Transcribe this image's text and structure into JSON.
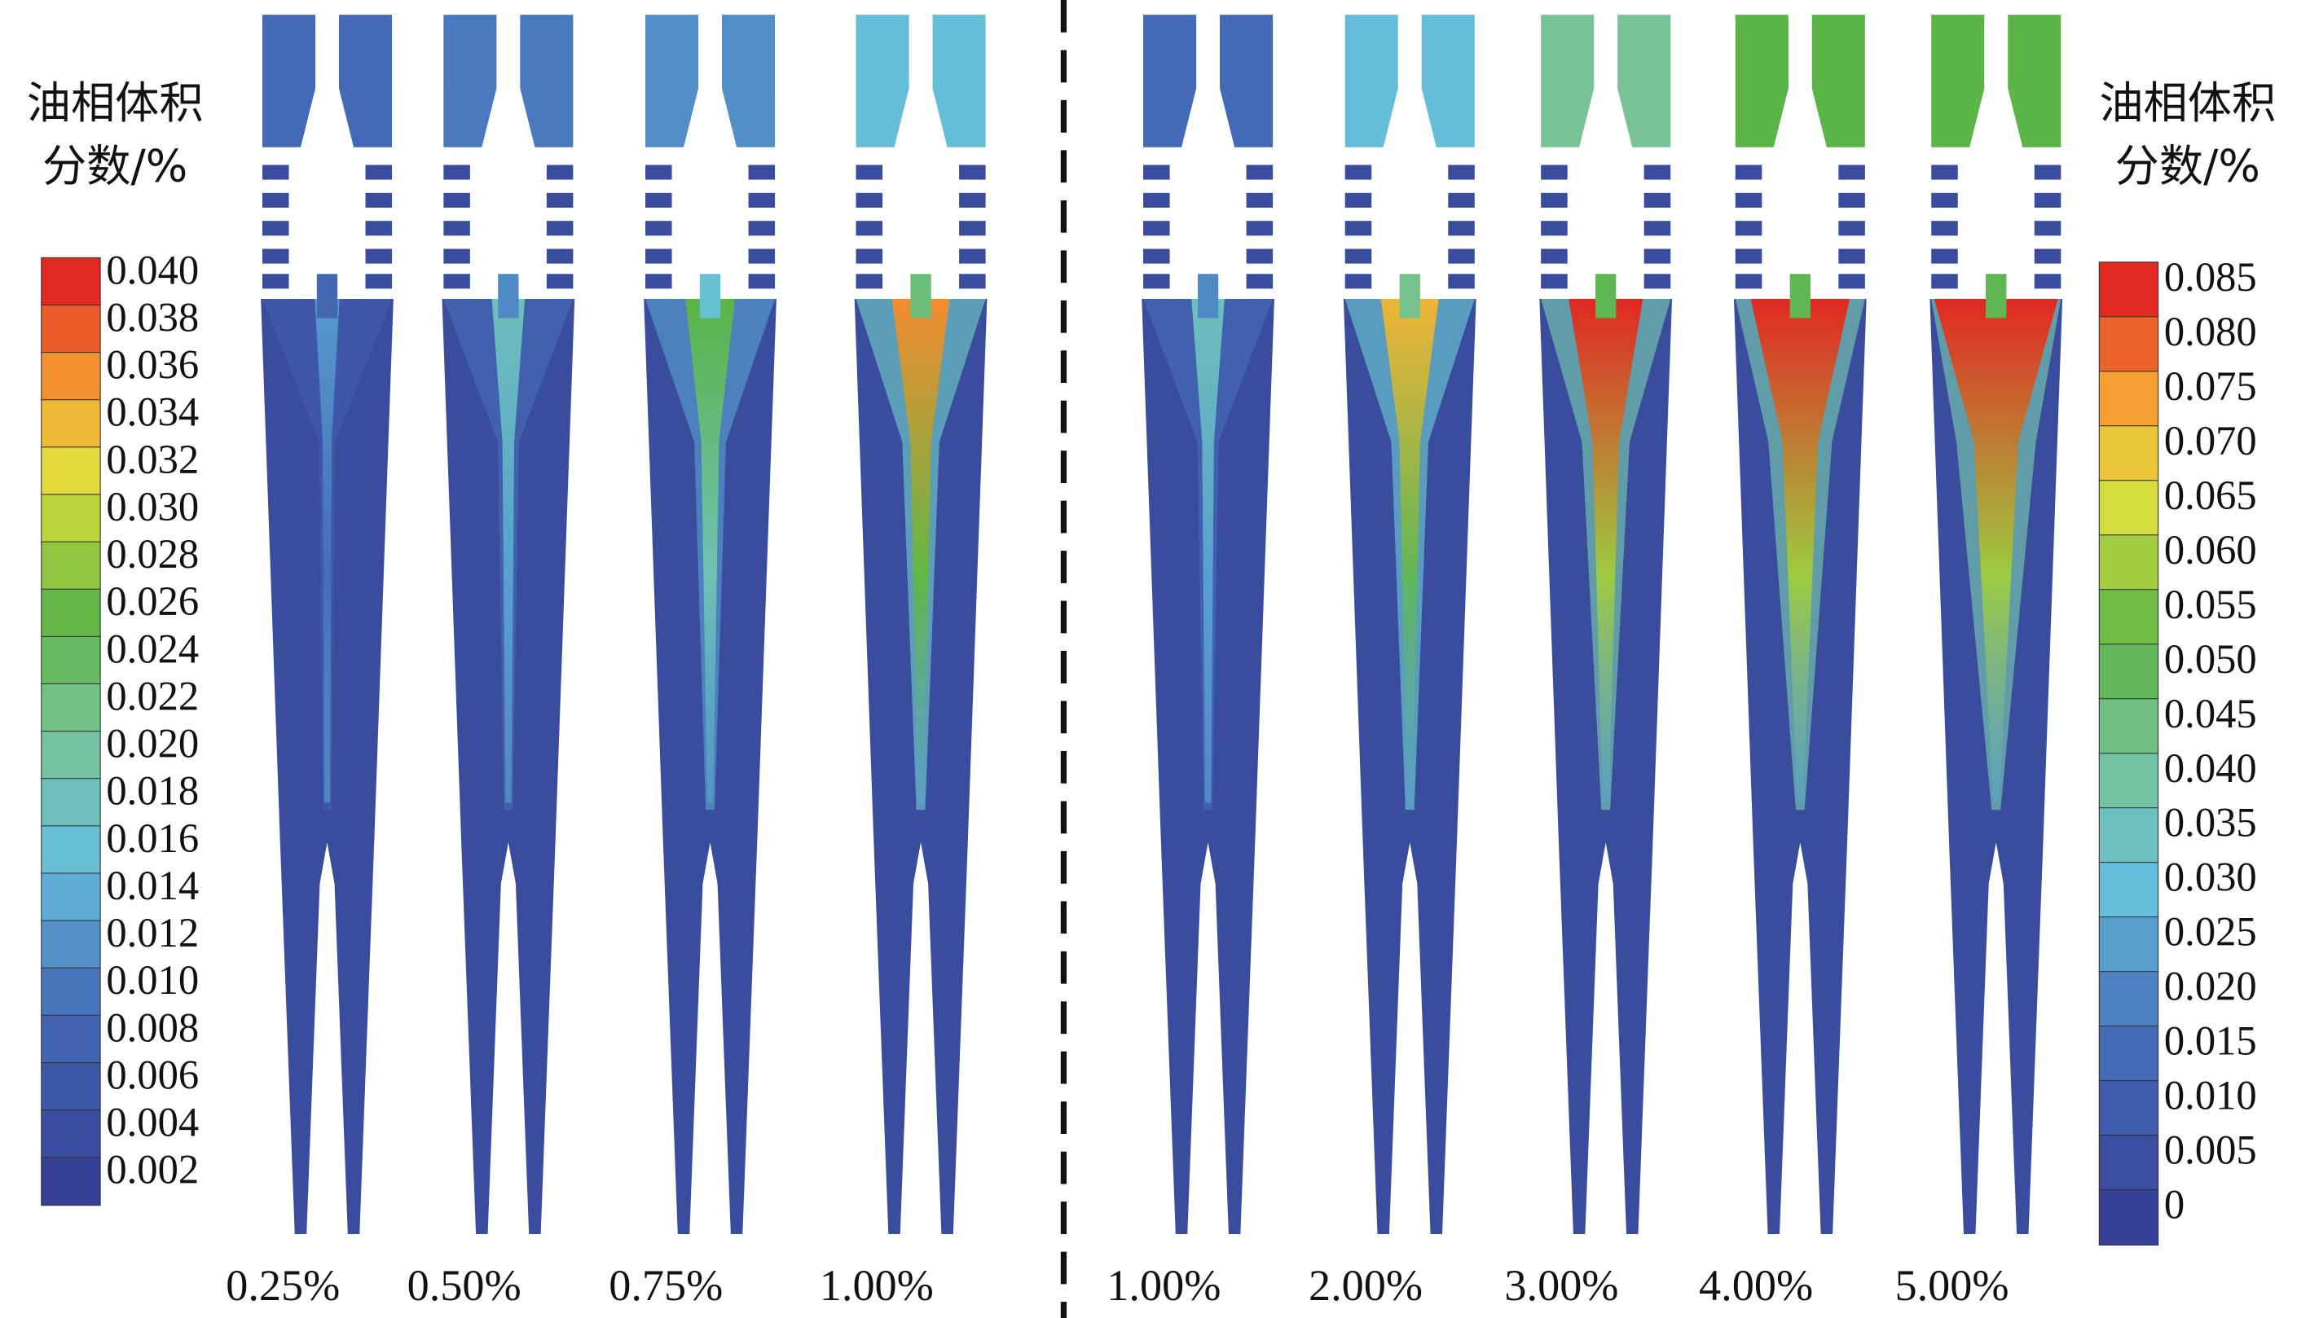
{
  "legend_left": {
    "title": [
      "油相体积",
      "分数/%"
    ],
    "labels": [
      "0.040",
      "0.038",
      "0.036",
      "0.034",
      "0.032",
      "0.030",
      "0.028",
      "0.026",
      "0.024",
      "0.022",
      "0.020",
      "0.018",
      "0.016",
      "0.014",
      "0.012",
      "0.010",
      "0.008",
      "0.006",
      "0.004",
      "0.002"
    ]
  },
  "legend_right": {
    "title": [
      "油相体积",
      "分数/%"
    ],
    "labels": [
      "0.085",
      "0.080",
      "0.075",
      "0.070",
      "0.065",
      "0.060",
      "0.055",
      "0.050",
      "0.045",
      "0.040",
      "0.035",
      "0.030",
      "0.025",
      "0.020",
      "0.015",
      "0.010",
      "0.005",
      "0"
    ]
  },
  "panels": [
    "0.25%",
    "0.50%",
    "0.75%",
    "1.00%",
    "1.00%",
    "2.00%",
    "3.00%",
    "4.00%",
    "5.00%"
  ]
}
